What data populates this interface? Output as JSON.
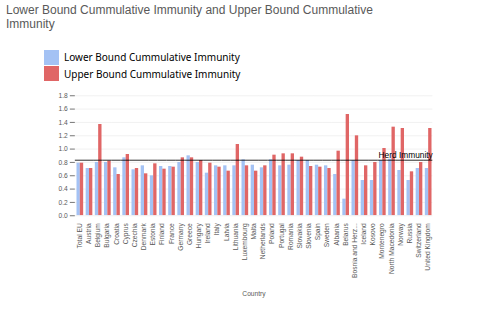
{
  "chart_data": {
    "type": "bar",
    "title": "Lower Bound Cummulative Immunity and Upper Bound Cummulative\nImmunity",
    "xlabel": "Country",
    "categories": [
      "Total EU",
      "Austria",
      "Belgium",
      "Bulgaria",
      "Croatia",
      "Cyprus",
      "Czechia",
      "Denmark",
      "Estonia",
      "Finland",
      "France",
      "Germany",
      "Greece",
      "Hungary",
      "Ireland",
      "Italy",
      "Latvia",
      "Lithuania",
      "Luxembourg",
      "Malta",
      "Netherlands",
      "Poland",
      "Portugal",
      "Romania",
      "Slovakia",
      "Slovenia",
      "Spain",
      "Sweden",
      "Albania",
      "Belarus",
      "Bosnia and Herz...",
      "Iceland",
      "Kosovo",
      "Montenegro",
      "North Macedonia",
      "Norway",
      "Russia",
      "Switzerland",
      "United Kingdom"
    ],
    "series": [
      {
        "name": "Lower Bound Cummulative Immunity",
        "color": "#a4c2f4",
        "values": [
          0.79,
          0.71,
          0.8,
          0.8,
          0.72,
          0.87,
          0.69,
          0.75,
          0.6,
          0.74,
          0.74,
          0.8,
          0.9,
          0.8,
          0.64,
          0.75,
          0.75,
          0.75,
          0.84,
          0.76,
          0.72,
          0.84,
          0.75,
          0.76,
          0.83,
          0.83,
          0.76,
          0.75,
          0.62,
          0.25,
          0.83,
          0.53,
          0.53,
          0.83,
          0.85,
          0.68,
          0.53,
          0.71,
          0.71
        ]
      },
      {
        "name": "Upper Bound Cummulative Immunity",
        "color": "#e06666",
        "values": [
          0.79,
          0.71,
          1.37,
          0.82,
          0.62,
          0.92,
          0.71,
          0.63,
          0.78,
          0.7,
          0.73,
          0.87,
          0.87,
          0.83,
          0.79,
          0.73,
          0.67,
          1.07,
          0.75,
          0.67,
          0.75,
          0.91,
          0.93,
          0.93,
          0.88,
          0.74,
          0.73,
          0.71,
          0.97,
          1.52,
          1.2,
          0.75,
          0.8,
          1.01,
          1.33,
          1.31,
          0.66,
          0.8,
          1.31
        ]
      }
    ],
    "annotations": [
      {
        "text": "Herd Immunity",
        "y": 0.833
      }
    ],
    "ylim": [
      0.0,
      1.8
    ],
    "yticks": [
      {
        "value": 0.0,
        "label": "0.0"
      },
      0.2,
      0.4,
      0.6,
      0.8,
      {
        "value": 1.0,
        "label": "1.0"
      },
      1.2,
      1.4,
      1.6,
      1.8
    ],
    "grid": true,
    "legend": "top"
  }
}
